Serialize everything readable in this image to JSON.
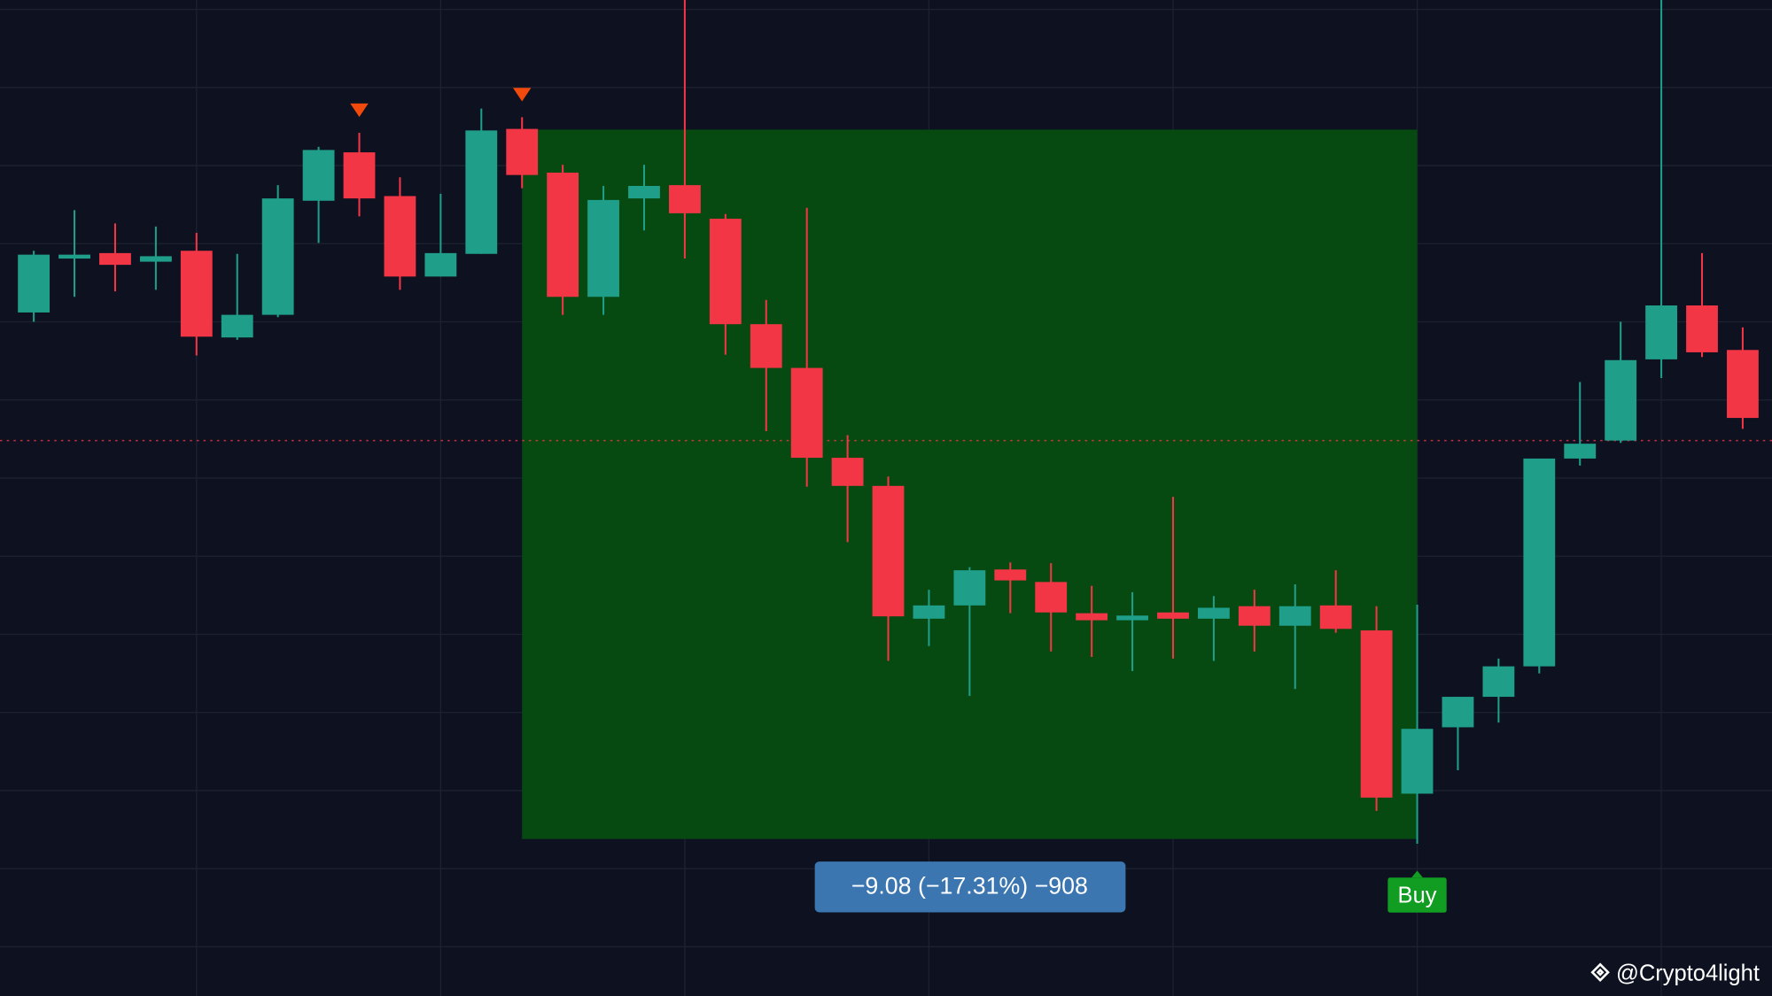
{
  "chart_data": {
    "type": "candlestick",
    "x": [
      0,
      1,
      2,
      3,
      4,
      5,
      6,
      7,
      8,
      9,
      10,
      11,
      12,
      13,
      14,
      15,
      16,
      17,
      18,
      19,
      20,
      21,
      22,
      23,
      24,
      25,
      26,
      27,
      28,
      29,
      30,
      31,
      32,
      33,
      34,
      35,
      36,
      37,
      38,
      39,
      40,
      41,
      42
    ],
    "open": [
      50.12,
      50.81,
      50.88,
      50.77,
      50.91,
      49.8,
      50.09,
      51.55,
      52.17,
      51.61,
      50.58,
      50.87,
      52.47,
      51.91,
      50.32,
      51.58,
      51.75,
      51.32,
      49.97,
      49.41,
      48.26,
      47.9,
      46.2,
      46.37,
      46.83,
      46.67,
      46.27,
      46.18,
      46.28,
      46.2,
      46.36,
      46.11,
      46.37,
      46.05,
      43.96,
      44.81,
      45.2,
      45.59,
      48.25,
      48.48,
      49.52,
      50.21,
      49.64
    ],
    "high": [
      50.91,
      51.43,
      51.26,
      51.22,
      51.14,
      50.87,
      51.75,
      52.24,
      52.42,
      51.85,
      51.64,
      52.73,
      52.62,
      52.01,
      51.74,
      52.01,
      54.12,
      51.38,
      50.28,
      51.46,
      48.55,
      48.02,
      46.57,
      46.86,
      46.92,
      46.91,
      46.62,
      46.54,
      47.76,
      46.49,
      46.57,
      46.64,
      46.82,
      46.36,
      46.38,
      45.2,
      45.69,
      48.25,
      49.23,
      50.0,
      54.12,
      50.88,
      49.93
    ],
    "low": [
      50.0,
      50.32,
      50.39,
      50.41,
      49.57,
      49.77,
      50.06,
      51.01,
      51.35,
      50.41,
      50.58,
      50.87,
      51.71,
      50.09,
      50.09,
      51.17,
      50.81,
      49.58,
      48.6,
      47.89,
      47.18,
      45.66,
      45.85,
      45.21,
      46.27,
      45.78,
      45.71,
      45.53,
      45.69,
      45.66,
      45.78,
      45.3,
      46.02,
      43.74,
      43.32,
      44.26,
      44.87,
      45.5,
      48.16,
      48.45,
      49.28,
      49.55,
      48.63
    ],
    "close": [
      50.86,
      50.86,
      50.73,
      50.84,
      49.81,
      50.09,
      51.58,
      52.2,
      51.58,
      50.58,
      50.88,
      52.45,
      51.88,
      50.32,
      51.56,
      51.74,
      51.39,
      49.97,
      49.41,
      48.26,
      47.9,
      46.23,
      46.37,
      46.82,
      46.69,
      46.28,
      46.18,
      46.24,
      46.2,
      46.34,
      46.11,
      46.36,
      46.07,
      43.91,
      44.79,
      45.2,
      45.59,
      48.25,
      48.44,
      49.51,
      50.21,
      49.61,
      48.77
    ],
    "up_color": "#1f9e89",
    "down_color": "#f23645",
    "xlim": [
      -0.83,
      42.72
    ],
    "ylim": [
      41.37,
      54.12
    ],
    "xticks": [
      4,
      10,
      16,
      22,
      28,
      34,
      40
    ],
    "yticks": [
      42,
      43,
      44,
      45,
      46,
      47,
      48,
      49,
      50,
      51,
      52,
      53,
      54
    ],
    "grid": true,
    "price_line": {
      "value": 48.48,
      "color": "#f23645"
    },
    "sell_markers": {
      "x": [
        8,
        12
      ],
      "color": "#f2490c"
    },
    "measure": {
      "start_x": 12,
      "end_x": 34,
      "start": 52.46,
      "end": 43.38,
      "color": "#064a12",
      "label": "−9.08 (−17.31%) −908"
    },
    "buy_signal": {
      "x": 34,
      "label": "Buy",
      "color": "#119c22"
    },
    "watermark": "@Crypto4light"
  }
}
